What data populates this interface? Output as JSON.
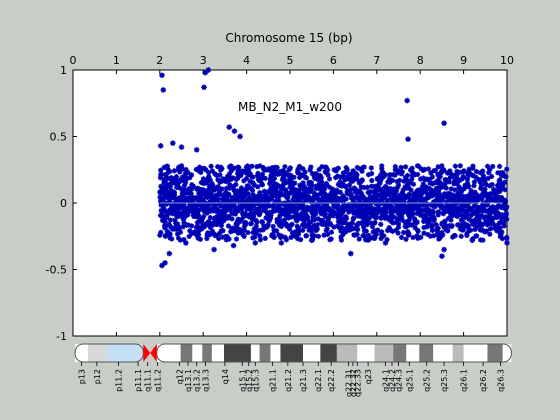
{
  "chart_data": {
    "type": "scatter",
    "title": "Chromosome 15 (bp)",
    "annotation": "MB_N2_M1_w200",
    "xlim": [
      0,
      10
    ],
    "ylim": [
      -1,
      1
    ],
    "x_ticks": [
      "0",
      "1",
      "2",
      "3",
      "4",
      "5",
      "6",
      "7",
      "8",
      "9",
      "10"
    ],
    "y_ticks": [
      "1",
      "0.5",
      "0",
      "-0.5",
      "-1"
    ],
    "y_tick_values": [
      1,
      0.5,
      0,
      -0.5,
      -1
    ],
    "grid": false,
    "colors": {
      "points": "#0000b4",
      "baseline": "#8aa6c8",
      "background": "#c8cdc8",
      "plot_area": "#ffffff",
      "centromere": "#ff0000"
    },
    "series": [
      {
        "values_note": "dense band of points from x≈2.0 to x≈10.0, roughly between -0.3 and +0.3",
        "x_range": [
          2.0,
          10.0
        ],
        "band": [
          -0.3,
          0.3
        ],
        "points": [
          [
            2.05,
            0.96
          ],
          [
            2.08,
            0.85
          ],
          [
            3.05,
            0.98
          ],
          [
            3.12,
            1.0
          ],
          [
            3.02,
            0.87
          ],
          [
            7.7,
            0.77
          ],
          [
            8.55,
            0.6
          ],
          [
            3.6,
            0.57
          ],
          [
            3.72,
            0.54
          ],
          [
            3.85,
            0.5
          ],
          [
            7.72,
            0.48
          ],
          [
            2.02,
            0.43
          ],
          [
            2.3,
            0.45
          ],
          [
            2.5,
            0.42
          ],
          [
            2.85,
            0.4
          ],
          [
            2.05,
            -0.47
          ],
          [
            2.12,
            -0.45
          ],
          [
            2.22,
            -0.38
          ],
          [
            3.25,
            -0.35
          ],
          [
            3.7,
            -0.32
          ],
          [
            6.4,
            -0.38
          ],
          [
            8.5,
            -0.4
          ],
          [
            8.55,
            -0.35
          ],
          [
            10.0,
            -0.3
          ],
          [
            4.2,
            -0.3
          ],
          [
            5.5,
            -0.28
          ],
          [
            7.2,
            -0.3
          ],
          [
            9.2,
            -0.28
          ],
          [
            2.6,
            -0.3
          ],
          [
            4.8,
            -0.3
          ]
        ]
      }
    ],
    "ideogram": {
      "bands": [
        "p13",
        "p12",
        "p11.2",
        "p11.1",
        "q11.1",
        "q11.2",
        "q12",
        "q13.1",
        "q13.2",
        "q13.3",
        "q14",
        "q15.1",
        "q15.2",
        "q15.3",
        "q21.1",
        "q21.2",
        "q21.3",
        "q22.1",
        "q22.2",
        "q22.31",
        "q22.32",
        "q22.33",
        "q23",
        "q24.1",
        "q24.2",
        "q24.3",
        "q25.1",
        "q25.2",
        "q25.3",
        "q26.1",
        "q26.2",
        "q26.3"
      ]
    }
  }
}
